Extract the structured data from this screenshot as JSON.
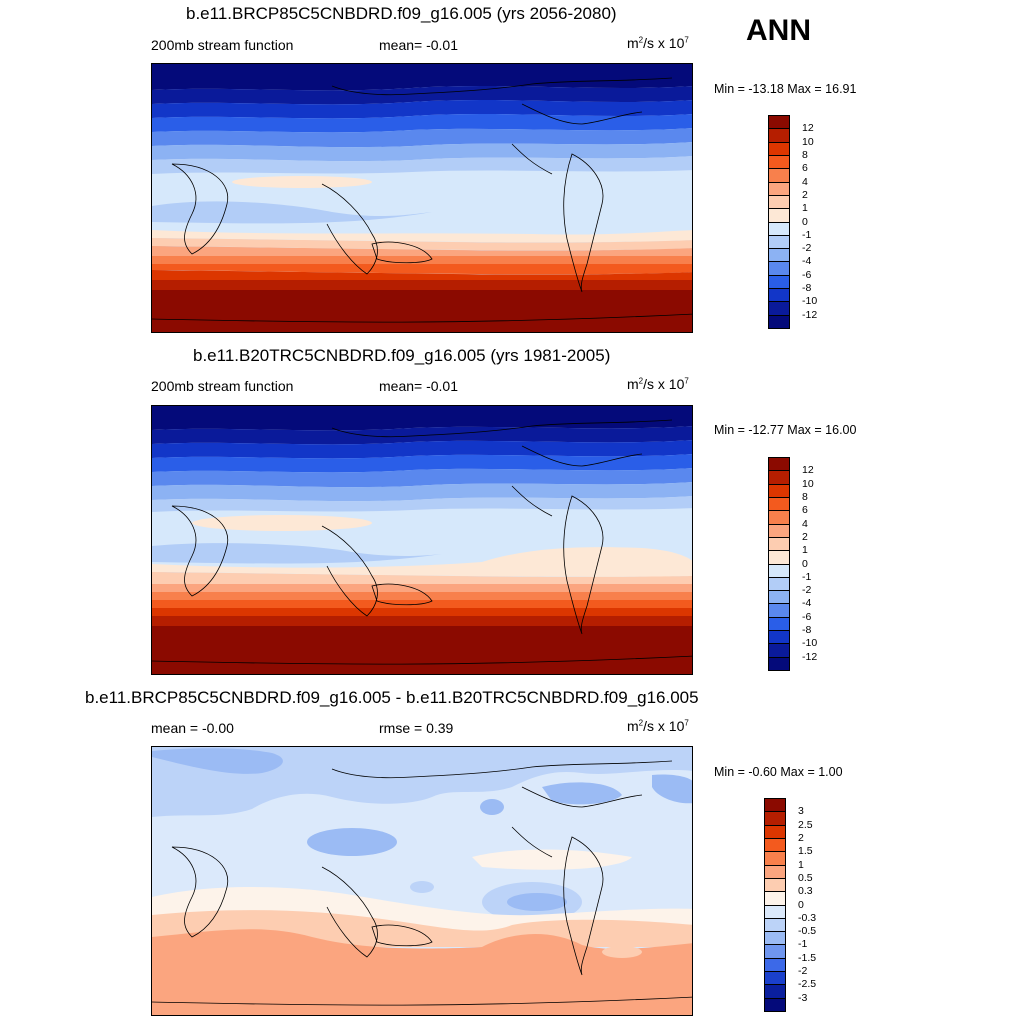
{
  "season": "ANN",
  "panels": [
    {
      "title": "b.e11.BRCP85C5CNBDRD.f09_g16.005 (yrs 2056-2080)",
      "left_label": "200mb stream function",
      "center_label": "mean=  -0.01",
      "units_base": "m",
      "units_exp": "2",
      "units_mid": "/s x 10",
      "units_exp2": "7",
      "minmax": "Min = -13.18 Max =  16.91",
      "colorbar_labels": [
        "12",
        "10",
        "8",
        "6",
        "4",
        "2",
        "1",
        "0",
        "-1",
        "-2",
        "-4",
        "-6",
        "-8",
        "-10",
        "-12"
      ],
      "colors": [
        "#8b0a00",
        "#b51e00",
        "#dc3600",
        "#f35a1e",
        "#f8804c",
        "#fba57f",
        "#fdcdb1",
        "#fde8d6",
        "#d6e8fb",
        "#b2cdf7",
        "#8cb2f3",
        "#5a88ee",
        "#2a5ee8",
        "#1236c8",
        "#0a1a9a",
        "#040a7a"
      ]
    },
    {
      "title": "b.e11.B20TRC5CNBDRD.f09_g16.005 (yrs 1981-2005)",
      "left_label": "200mb stream function",
      "center_label": "mean=  -0.01",
      "units_base": "m",
      "units_exp": "2",
      "units_mid": "/s x 10",
      "units_exp2": "7",
      "minmax": "Min = -12.77 Max =  16.00",
      "colorbar_labels": [
        "12",
        "10",
        "8",
        "6",
        "4",
        "2",
        "1",
        "0",
        "-1",
        "-2",
        "-4",
        "-6",
        "-8",
        "-10",
        "-12"
      ],
      "colors": [
        "#8b0a00",
        "#b51e00",
        "#dc3600",
        "#f35a1e",
        "#f8804c",
        "#fba57f",
        "#fdcdb1",
        "#fde8d6",
        "#d6e8fb",
        "#b2cdf7",
        "#8cb2f3",
        "#5a88ee",
        "#2a5ee8",
        "#1236c8",
        "#0a1a9a",
        "#040a7a"
      ]
    },
    {
      "title": "b.e11.BRCP85C5CNBDRD.f09_g16.005 - b.e11.B20TRC5CNBDRD.f09_g16.005",
      "left_label": "mean =  -0.00",
      "center_label": "rmse =   0.39",
      "units_base": "m",
      "units_exp": "2",
      "units_mid": "/s x 10",
      "units_exp2": "7",
      "minmax": "Min =  -0.60 Max =   1.00",
      "colorbar_labels": [
        "3",
        "2.5",
        "2",
        "1.5",
        "1",
        "0.5",
        "0.3",
        "0",
        "-0.3",
        "-0.5",
        "-1",
        "-1.5",
        "-2",
        "-2.5",
        "-3"
      ],
      "colors": [
        "#8b0a00",
        "#b51e00",
        "#dc3600",
        "#f35a1e",
        "#f8804c",
        "#fba57f",
        "#fdcdb1",
        "#fdf3ea",
        "#dbe9fb",
        "#bcd3f8",
        "#9bbbf4",
        "#6f96ef",
        "#3c69e8",
        "#1a40cc",
        "#0a1f9e",
        "#040a7a"
      ]
    }
  ]
}
